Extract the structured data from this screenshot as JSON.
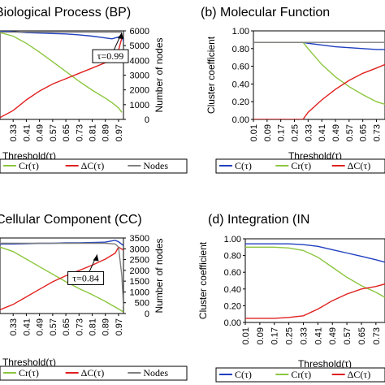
{
  "chart_data": [
    {
      "type": "line",
      "title": "(a) Biological Process (BP)",
      "xlabel": "Threshold(τ)",
      "ylabel": "",
      "y2label": "Number of nodes",
      "x_ticks": [
        "0.33",
        "0.41",
        "0.49",
        "0.57",
        "0.65",
        "0.73",
        "0.81",
        "0.89",
        "0.97"
      ],
      "y_ticks": [],
      "y2_ticks": [
        "0",
        "1000",
        "2000",
        "3000",
        "4000",
        "5000",
        "6000"
      ],
      "ylim": [
        0,
        1
      ],
      "y2lim": [
        0,
        6000
      ],
      "xlim": [
        0.25,
        1.0
      ],
      "annotation": {
        "text": "τ=0.99",
        "x": 0.99,
        "y": 0.98
      },
      "series": [
        {
          "name": "C(τ)",
          "color": "#1f3fbf",
          "x": [
            0.25,
            0.33,
            0.41,
            0.49,
            0.57,
            0.65,
            0.73,
            0.81,
            0.89,
            0.93,
            0.97,
            0.99,
            1.0
          ],
          "y": [
            1.0,
            0.99,
            0.98,
            0.975,
            0.97,
            0.965,
            0.955,
            0.94,
            0.92,
            0.91,
            0.93,
            0.95,
            0.88
          ]
        },
        {
          "name": "Cr(τ)",
          "color": "#8cc63f",
          "x": [
            0.25,
            0.33,
            0.41,
            0.49,
            0.57,
            0.65,
            0.73,
            0.81,
            0.89,
            0.93,
            0.97,
            0.99
          ],
          "y": [
            0.98,
            0.94,
            0.86,
            0.76,
            0.65,
            0.54,
            0.43,
            0.33,
            0.24,
            0.19,
            0.13,
            0.08
          ]
        },
        {
          "name": "ΔC(τ)",
          "color": "#e02020",
          "x": [
            0.25,
            0.33,
            0.41,
            0.49,
            0.57,
            0.65,
            0.73,
            0.81,
            0.89,
            0.93,
            0.97,
            0.99
          ],
          "y": [
            0.02,
            0.1,
            0.22,
            0.32,
            0.4,
            0.46,
            0.52,
            0.58,
            0.64,
            0.69,
            0.78,
            0.92
          ]
        },
        {
          "name": "Nodes",
          "color": "#7f7f7f",
          "x": [
            0.25,
            0.99
          ],
          "y": [
            0.985,
            0.985
          ]
        }
      ]
    },
    {
      "type": "line",
      "title": "(b) Molecular Function",
      "xlabel": "Threshold(τ)",
      "ylabel": "Cluster coefficient",
      "x_ticks": [
        "0.01",
        "0.09",
        "0.17",
        "0.25",
        "0.33",
        "0.41",
        "0.49",
        "0.57",
        "0.65",
        "0.73"
      ],
      "y_ticks": [
        "0.00",
        "0.20",
        "0.40",
        "0.60",
        "0.80",
        "1.00"
      ],
      "ylim": [
        0,
        1
      ],
      "xlim": [
        0.01,
        0.78
      ],
      "series": [
        {
          "name": "C(τ)",
          "color": "#1f3fbf",
          "x": [
            0.01,
            0.09,
            0.17,
            0.25,
            0.3,
            0.33,
            0.41,
            0.49,
            0.57,
            0.65,
            0.73,
            0.78
          ],
          "y": [
            0.87,
            0.87,
            0.87,
            0.87,
            0.87,
            0.86,
            0.84,
            0.82,
            0.81,
            0.8,
            0.79,
            0.79
          ]
        },
        {
          "name": "Cr(τ)",
          "color": "#8cc63f",
          "x": [
            0.01,
            0.09,
            0.17,
            0.25,
            0.3,
            0.33,
            0.41,
            0.49,
            0.57,
            0.65,
            0.73,
            0.78
          ],
          "y": [
            0.87,
            0.87,
            0.87,
            0.87,
            0.87,
            0.8,
            0.62,
            0.48,
            0.37,
            0.28,
            0.2,
            0.17
          ]
        },
        {
          "name": "ΔC(τ)",
          "color": "#e02020",
          "x": [
            0.01,
            0.09,
            0.17,
            0.25,
            0.3,
            0.33,
            0.41,
            0.49,
            0.57,
            0.65,
            0.73,
            0.78
          ],
          "y": [
            0.0,
            0.0,
            0.0,
            0.0,
            0.0,
            0.08,
            0.22,
            0.34,
            0.44,
            0.52,
            0.58,
            0.62
          ]
        },
        {
          "name": "Nodes",
          "color": "#7f7f7f",
          "x": [
            0.01,
            0.78
          ],
          "y": [
            0.87,
            0.87
          ]
        }
      ]
    },
    {
      "type": "line",
      "title": "(c) Cellular Component (CC)",
      "xlabel": "Threshold(τ)",
      "ylabel": "",
      "y2label": "Number of nodes",
      "x_ticks": [
        "0.33",
        "0.41",
        "0.49",
        "0.57",
        "0.65",
        "0.73",
        "0.81",
        "0.89",
        "0.97"
      ],
      "y_ticks": [],
      "y2_ticks": [
        "0",
        "500",
        "1000",
        "1500",
        "2000",
        "2500",
        "3000",
        "3500"
      ],
      "ylim": [
        0,
        1
      ],
      "y2lim": [
        0,
        3500
      ],
      "xlim": [
        0.25,
        1.0
      ],
      "annotation": {
        "text": "τ=0.84",
        "x": 0.84,
        "y": 0.78
      },
      "series": [
        {
          "name": "C(τ)",
          "color": "#1f3fbf",
          "x": [
            0.25,
            0.33,
            0.41,
            0.49,
            0.57,
            0.65,
            0.73,
            0.81,
            0.89,
            0.95,
            0.97,
            1.0
          ],
          "y": [
            0.92,
            0.92,
            0.925,
            0.93,
            0.93,
            0.935,
            0.935,
            0.94,
            0.945,
            0.97,
            0.95,
            0.9
          ]
        },
        {
          "name": "Cr(τ)",
          "color": "#8cc63f",
          "x": [
            0.25,
            0.33,
            0.41,
            0.49,
            0.57,
            0.65,
            0.73,
            0.81,
            0.89,
            0.97,
            1.0
          ],
          "y": [
            0.88,
            0.82,
            0.72,
            0.62,
            0.52,
            0.42,
            0.33,
            0.25,
            0.16,
            0.06,
            0.02
          ]
        },
        {
          "name": "ΔC(τ)",
          "color": "#e02020",
          "x": [
            0.25,
            0.33,
            0.41,
            0.49,
            0.57,
            0.65,
            0.73,
            0.81,
            0.89,
            0.95,
            0.97,
            1.0
          ],
          "y": [
            0.05,
            0.12,
            0.22,
            0.32,
            0.42,
            0.5,
            0.57,
            0.64,
            0.72,
            0.8,
            0.88,
            0.84
          ]
        },
        {
          "name": "Nodes",
          "color": "#7f7f7f",
          "x": [
            0.25,
            0.89,
            0.95,
            0.97,
            0.99,
            1.0
          ],
          "y": [
            0.93,
            0.93,
            0.92,
            0.88,
            0.5,
            0.1
          ]
        }
      ]
    },
    {
      "type": "line",
      "title": "(d) Integration (IN",
      "xlabel": "Threshold(τ)",
      "ylabel": "Cluster coefficient",
      "x_ticks": [
        "0.01",
        "0.09",
        "0.17",
        "0.25",
        "0.33",
        "0.41",
        "0.49",
        "0.57",
        "0.65",
        "0.73"
      ],
      "y_ticks": [
        "0.00",
        "0.20",
        "0.40",
        "0.60",
        "0.80",
        "1.00"
      ],
      "ylim": [
        0,
        1
      ],
      "xlim": [
        0.01,
        0.78
      ],
      "series": [
        {
          "name": "C(τ)",
          "color": "#1f3fbf",
          "x": [
            0.01,
            0.09,
            0.17,
            0.25,
            0.33,
            0.41,
            0.49,
            0.57,
            0.65,
            0.73,
            0.78
          ],
          "y": [
            0.94,
            0.94,
            0.94,
            0.94,
            0.93,
            0.91,
            0.87,
            0.83,
            0.79,
            0.75,
            0.72
          ]
        },
        {
          "name": "Cr(τ)",
          "color": "#8cc63f",
          "x": [
            0.01,
            0.09,
            0.17,
            0.25,
            0.33,
            0.41,
            0.49,
            0.57,
            0.65,
            0.73,
            0.78
          ],
          "y": [
            0.9,
            0.9,
            0.9,
            0.89,
            0.86,
            0.78,
            0.66,
            0.54,
            0.44,
            0.36,
            0.3
          ]
        },
        {
          "name": "ΔC(τ)",
          "color": "#e02020",
          "x": [
            0.01,
            0.09,
            0.17,
            0.25,
            0.33,
            0.41,
            0.49,
            0.57,
            0.65,
            0.73,
            0.78
          ],
          "y": [
            0.05,
            0.05,
            0.05,
            0.06,
            0.08,
            0.16,
            0.26,
            0.34,
            0.4,
            0.43,
            0.46
          ]
        }
      ]
    }
  ],
  "legends": [
    {
      "items": [
        {
          "label": "Cr(τ)",
          "color": "#8cc63f"
        },
        {
          "label": "ΔC(τ)",
          "color": "#e02020"
        },
        {
          "label": "Nodes",
          "color": "#7f7f7f"
        }
      ]
    },
    {
      "items": [
        {
          "label": "C(τ)",
          "color": "#1f3fbf"
        },
        {
          "label": "Cr(τ)",
          "color": "#8cc63f"
        },
        {
          "label": "ΔC(τ)",
          "color": "#e02020"
        }
      ]
    },
    {
      "items": [
        {
          "label": "Cr(τ)",
          "color": "#8cc63f"
        },
        {
          "label": "ΔC(τ)",
          "color": "#e02020"
        },
        {
          "label": "Nodes",
          "color": "#7f7f7f"
        }
      ]
    },
    {
      "items": [
        {
          "label": "C(τ)",
          "color": "#1f3fbf"
        },
        {
          "label": "Cr(τ)",
          "color": "#8cc63f"
        },
        {
          "label": "ΔC(τ)",
          "color": "#e02020"
        }
      ]
    }
  ]
}
